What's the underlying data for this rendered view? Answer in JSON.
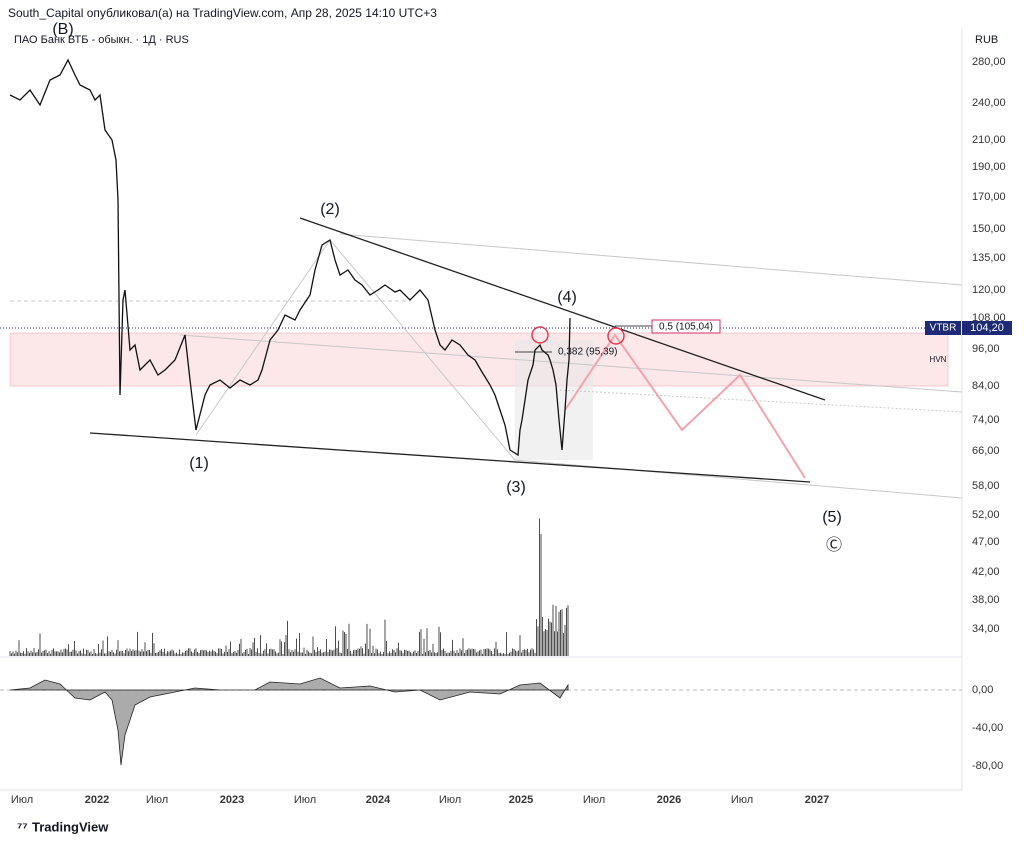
{
  "header": {
    "title": "South_Capital опубликовал(а) на TradingView.com, Апр 28, 2025 14:10 UTC+3"
  },
  "symbol": "ПАО Банк ВТБ - обыкн. · 1Д · RUS",
  "price_axis": {
    "unit": "RUB",
    "labels": [
      "280,00",
      "240,00",
      "210,00",
      "190,00",
      "170,00",
      "150,00",
      "135,00",
      "120,00",
      "108,00",
      "96,00",
      "84,00",
      "74,00",
      "66,00",
      "58,00",
      "52,00",
      "47,00",
      "42,00",
      "38,00",
      "34,00"
    ]
  },
  "oscillator_axis": {
    "labels": [
      "0,00",
      "-40,00",
      "-80,00"
    ]
  },
  "price_tag": {
    "symbol": "VTBR",
    "price": "104,20"
  },
  "zone_label": "HVN",
  "wave_labels": [
    "(B)",
    "(2)",
    "(1)",
    "(3)",
    "(4)",
    "(5)",
    "Ⓒ"
  ],
  "fib_labels": [
    "0,382 (95,39)",
    "0,5 (105,04)"
  ],
  "time_axis": [
    "Июл",
    "2022",
    "Июл",
    "2023",
    "Июл",
    "2024",
    "Июл",
    "2025",
    "Июл",
    "2026",
    "Июл",
    "2027"
  ],
  "footer": {
    "logo": "TradingView"
  }
}
